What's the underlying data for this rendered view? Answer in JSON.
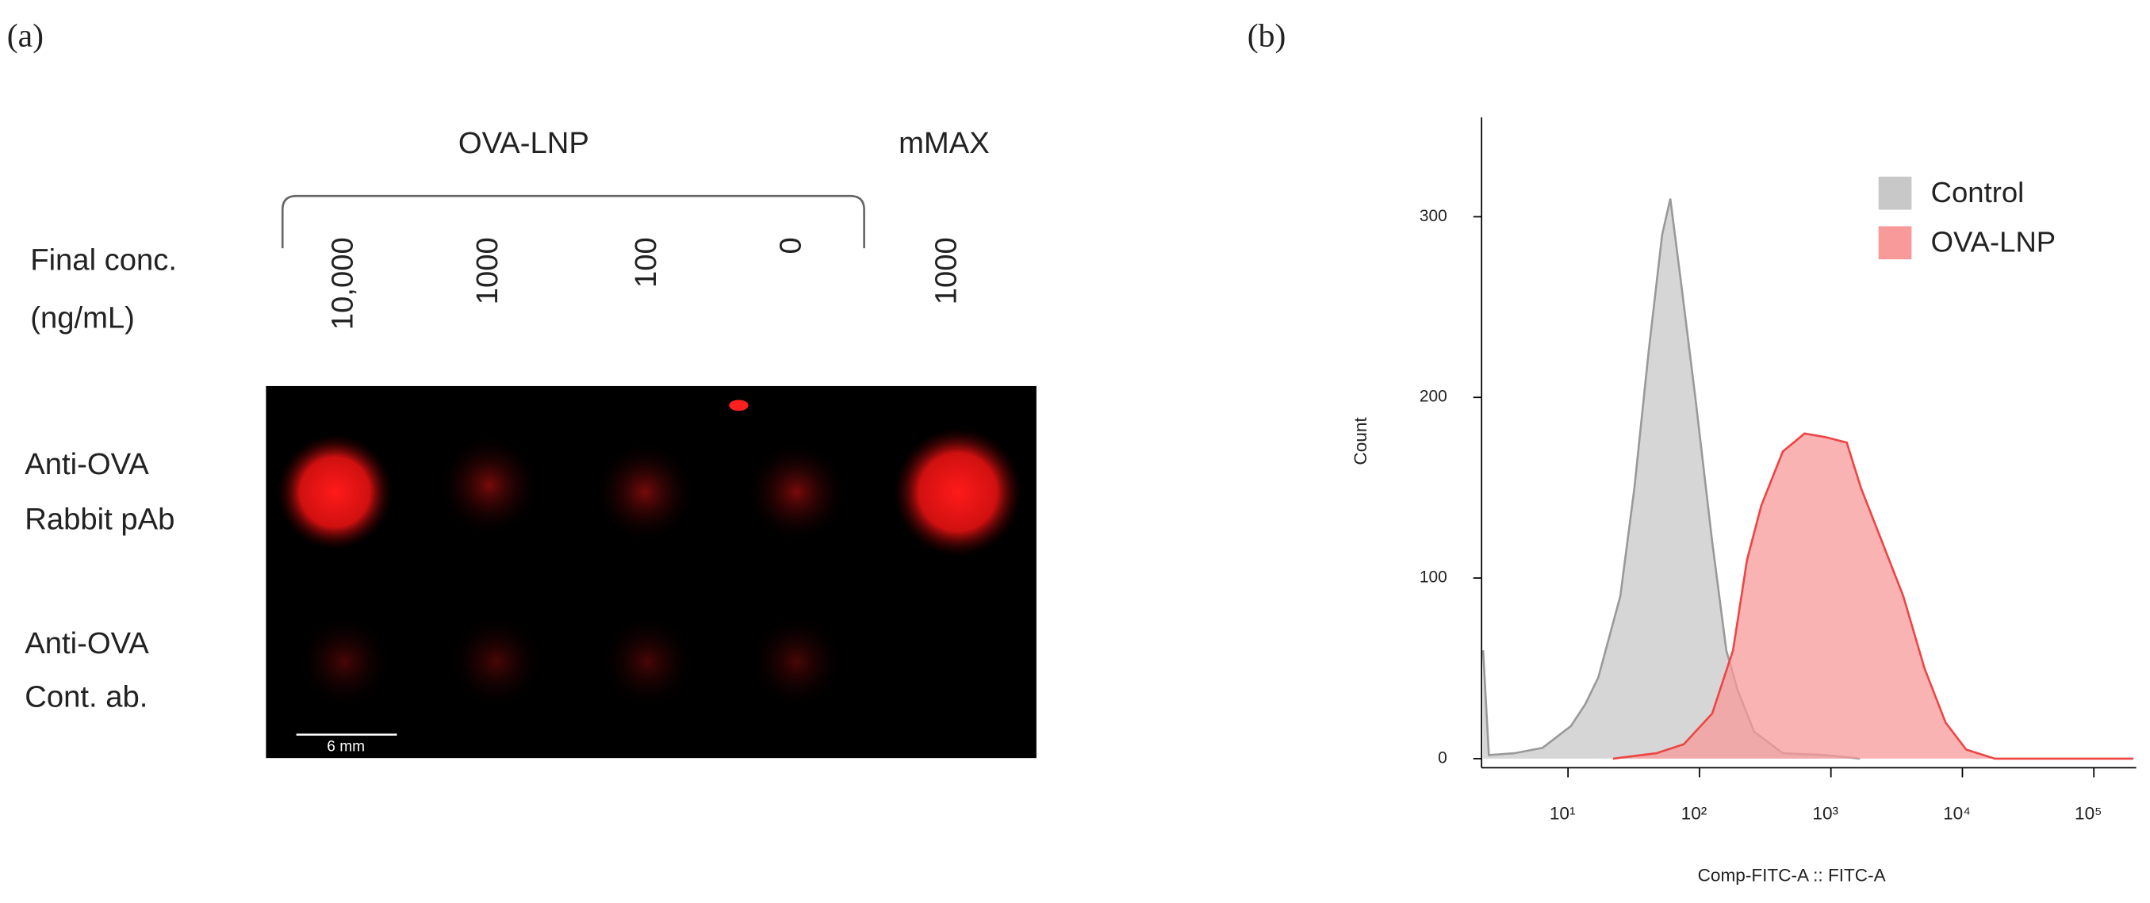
{
  "panel_a": {
    "label": "(a)",
    "group_label": "OVA-LNP",
    "control_label": "mMAX",
    "conc_label": [
      "Final conc.",
      "(ng/mL)"
    ],
    "columns": [
      "10,000",
      "1000",
      "100",
      "0",
      "1000"
    ],
    "rows": [
      [
        "Anti-OVA",
        "Rabbit pAb"
      ],
      [
        "Anti-OVA",
        "Cont. ab."
      ]
    ],
    "scale_bar": "6 mm"
  },
  "chart_data": {
    "type": "area",
    "panel_label": "(b)",
    "x_label": "Comp-FITC-A :: FITC-A",
    "y_label": "Count",
    "log_x": true,
    "xlim": [
      2.2,
      210000
    ],
    "ylim": [
      -5,
      355
    ],
    "xticks": [
      {
        "value": 10,
        "label": "10¹"
      },
      {
        "value": 100,
        "label": "10²"
      },
      {
        "value": 1000,
        "label": "10³"
      },
      {
        "value": 10000,
        "label": "10⁴"
      },
      {
        "value": 100000,
        "label": "10⁵"
      }
    ],
    "yticks": [
      0,
      100,
      200,
      300
    ],
    "legend": "upper right",
    "series": [
      {
        "name": "Control",
        "color": "#c8c8c8",
        "line_color": "#999999",
        "x": [
          2.26,
          2.5,
          3.9,
          6.4,
          10.5,
          13.5,
          17,
          25,
          32,
          41,
          52,
          60,
          72,
          93,
          125,
          160,
          195,
          260,
          430,
          900,
          1660
        ],
        "values": [
          60,
          2,
          3,
          6,
          18,
          30,
          45,
          90,
          150,
          225,
          290,
          310,
          265,
          200,
          120,
          60,
          38,
          15,
          3,
          2,
          0
        ]
      },
      {
        "name": "OVA-LNP",
        "color": "#f89a9a",
        "line_color": "#ee4444",
        "x": [
          22,
          47,
          76,
          125,
          180,
          230,
          295,
          430,
          630,
          910,
          1320,
          1690,
          2450,
          3550,
          5150,
          7450,
          10700,
          17700,
          200000
        ],
        "values": [
          0,
          3,
          8,
          25,
          60,
          110,
          140,
          170,
          180,
          178,
          175,
          150,
          120,
          90,
          50,
          20,
          5,
          0,
          0
        ]
      }
    ]
  }
}
